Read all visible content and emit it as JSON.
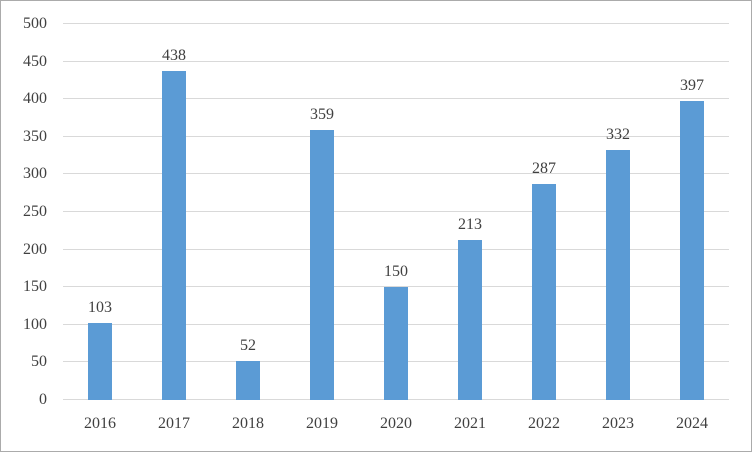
{
  "chart_data": {
    "type": "bar",
    "title": "",
    "xlabel": "",
    "ylabel": "",
    "categories": [
      "2016",
      "2017",
      "2018",
      "2019",
      "2020",
      "2021",
      "2022",
      "2023",
      "2024"
    ],
    "values": [
      103,
      438,
      52,
      359,
      150,
      213,
      287,
      332,
      397
    ],
    "data_labels_shown": true,
    "ylim": [
      0,
      500
    ],
    "yticks": [
      0,
      50,
      100,
      150,
      200,
      250,
      300,
      350,
      400,
      450,
      500
    ],
    "grid": true,
    "legend": false,
    "colors": {
      "bar": "#5b9bd5",
      "gridline": "#d9d9d9",
      "axis_line": "#d9d9d9",
      "axis_text": "#404040",
      "frame_border": "#ababab",
      "background": "#ffffff"
    }
  }
}
